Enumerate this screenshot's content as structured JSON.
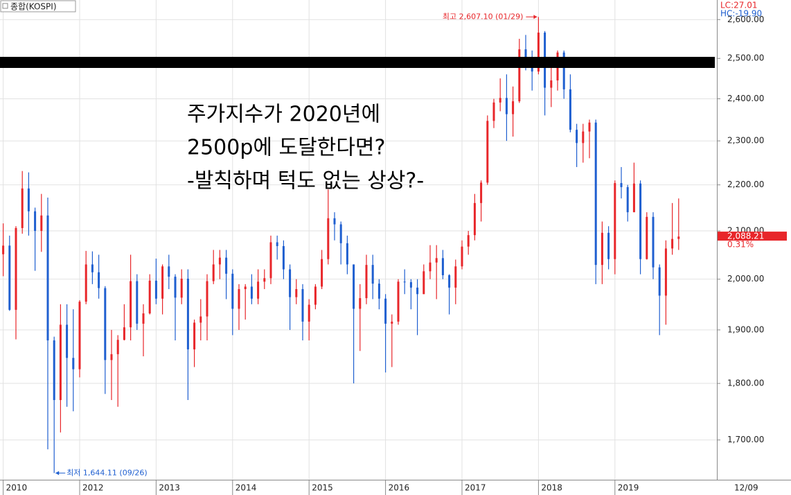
{
  "chart_data": {
    "type": "candlestick",
    "title": "종합(KOSPI)",
    "lc_label": "LC:27.01",
    "hc_label": "HC:-19.90",
    "overlay_text": [
      "주가지수가 2020년에",
      "2500p에 도달한다면?",
      "-발칙하며 턱도 없는 상상?-"
    ],
    "log_scale": true,
    "grid": true,
    "up_color": "#e8262a",
    "down_color": "#1f5fd0",
    "ylim": [
      1633,
      2652
    ],
    "yticks": [
      {
        "value": 1700,
        "label": "1,700.00"
      },
      {
        "value": 1800,
        "label": "1,800.00"
      },
      {
        "value": 1900,
        "label": "1,900.00"
      },
      {
        "value": 2000,
        "label": "2,000.00"
      },
      {
        "value": 2100,
        "label": "2,100.00"
      },
      {
        "value": 2200,
        "label": "2,200.00"
      },
      {
        "value": 2300,
        "label": "2,300.00"
      },
      {
        "value": 2400,
        "label": "2,400.00"
      },
      {
        "value": 2500,
        "label": "2,500.00"
      },
      {
        "value": 2600,
        "label": "2,600.00"
      }
    ],
    "xlim": [
      -0.5,
      112
    ],
    "xticks": [
      {
        "value": 0,
        "label": "2010"
      },
      {
        "value": 12,
        "label": "2012"
      },
      {
        "value": 24,
        "label": "2013"
      },
      {
        "value": 36,
        "label": "2014"
      },
      {
        "value": 48,
        "label": "2015"
      },
      {
        "value": 60,
        "label": "2016"
      },
      {
        "value": 72,
        "label": "2017"
      },
      {
        "value": 84,
        "label": "2018"
      },
      {
        "value": 96,
        "label": "2019"
      }
    ],
    "x_end_label": "12/09",
    "high_mark": {
      "index": 84,
      "value": 2607.1,
      "label": "최고 2,607.10 (01/29)"
    },
    "low_mark": {
      "index": 8,
      "value": 1644.11,
      "label": "최저 1,644.11 (09/26)"
    },
    "last_price": {
      "value": 2088.21,
      "label": "2,088.21"
    },
    "change_label": "0.31%",
    "candles": [
      [
        2051,
        2116,
        2006,
        2069
      ],
      [
        2069,
        2090,
        1937,
        1939
      ],
      [
        1939,
        2110,
        1882,
        2106
      ],
      [
        2106,
        2231,
        2094,
        2192
      ],
      [
        2192,
        2228,
        2090,
        2142
      ],
      [
        2142,
        2150,
        2017,
        2100
      ],
      [
        2100,
        2180,
        2056,
        2133
      ],
      [
        2133,
        2172,
        1684,
        1880
      ],
      [
        1880,
        1887,
        1644,
        1770
      ],
      [
        1770,
        1950,
        1713,
        1910
      ],
      [
        1910,
        1950,
        1758,
        1847
      ],
      [
        1847,
        1940,
        1750,
        1826
      ],
      [
        1826,
        1958,
        1811,
        1955
      ],
      [
        1955,
        2058,
        1950,
        2030
      ],
      [
        2030,
        2057,
        1990,
        2014
      ],
      [
        2014,
        2050,
        1961,
        1982
      ],
      [
        1982,
        1986,
        1781,
        1843
      ],
      [
        1843,
        1900,
        1770,
        1854
      ],
      [
        1854,
        1890,
        1758,
        1881
      ],
      [
        1881,
        1950,
        1880,
        1905
      ],
      [
        1905,
        2050,
        1880,
        1996
      ],
      [
        1996,
        2010,
        1900,
        1912
      ],
      [
        1912,
        1950,
        1850,
        1932
      ],
      [
        1932,
        2010,
        1930,
        1997
      ],
      [
        1997,
        2042,
        1950,
        1961
      ],
      [
        1961,
        2030,
        1930,
        2026
      ],
      [
        2026,
        2050,
        1980,
        2005
      ],
      [
        2005,
        2010,
        1880,
        1963
      ],
      [
        1963,
        2020,
        1950,
        2001
      ],
      [
        2001,
        2020,
        1770,
        1863
      ],
      [
        1863,
        1920,
        1830,
        1914
      ],
      [
        1914,
        1960,
        1880,
        1926
      ],
      [
        1926,
        2010,
        1880,
        1996
      ],
      [
        1996,
        2060,
        1990,
        2030
      ],
      [
        2030,
        2060,
        2000,
        2044
      ],
      [
        2044,
        2060,
        1960,
        2011
      ],
      [
        2011,
        2020,
        1890,
        1941
      ],
      [
        1941,
        1990,
        1900,
        1980
      ],
      [
        1980,
        1990,
        1920,
        1985
      ],
      [
        1985,
        2010,
        1950,
        1961
      ],
      [
        1961,
        2020,
        1950,
        1995
      ],
      [
        1995,
        2020,
        1980,
        2002
      ],
      [
        2002,
        2090,
        1990,
        2076
      ],
      [
        2076,
        2090,
        2040,
        2068
      ],
      [
        2068,
        2080,
        2000,
        2020
      ],
      [
        2020,
        2030,
        1900,
        1964
      ],
      [
        1964,
        2000,
        1950,
        1980
      ],
      [
        1980,
        1990,
        1880,
        1916
      ],
      [
        1916,
        1960,
        1880,
        1949
      ],
      [
        1949,
        1990,
        1940,
        1985
      ],
      [
        1985,
        2060,
        1980,
        2041
      ],
      [
        2041,
        2190,
        2030,
        2127
      ],
      [
        2127,
        2140,
        2080,
        2114
      ],
      [
        2114,
        2120,
        2030,
        2074
      ],
      [
        2074,
        2090,
        2010,
        2030
      ],
      [
        2030,
        2030,
        1800,
        1941
      ],
      [
        1941,
        1990,
        1860,
        1962
      ],
      [
        1962,
        2050,
        1950,
        2029
      ],
      [
        2029,
        2050,
        1960,
        1991
      ],
      [
        1991,
        2000,
        1940,
        1961
      ],
      [
        1961,
        1970,
        1820,
        1912
      ],
      [
        1912,
        1930,
        1830,
        1916
      ],
      [
        1916,
        2000,
        1910,
        1995
      ],
      [
        1995,
        2020,
        1970,
        1994
      ],
      [
        1994,
        2000,
        1940,
        1983
      ],
      [
        1983,
        2000,
        1890,
        1970
      ],
      [
        1970,
        2030,
        1970,
        2016
      ],
      [
        2016,
        2070,
        2000,
        2034
      ],
      [
        2034,
        2070,
        1960,
        2043
      ],
      [
        2043,
        2060,
        2000,
        2008
      ],
      [
        2008,
        2010,
        1930,
        1983
      ],
      [
        1983,
        2040,
        1950,
        2026
      ],
      [
        2026,
        2080,
        2020,
        2067
      ],
      [
        2067,
        2100,
        2050,
        2091
      ],
      [
        2091,
        2180,
        2080,
        2160
      ],
      [
        2160,
        2210,
        2120,
        2205
      ],
      [
        2205,
        2360,
        2200,
        2347
      ],
      [
        2347,
        2400,
        2330,
        2391
      ],
      [
        2391,
        2450,
        2370,
        2402
      ],
      [
        2402,
        2460,
        2300,
        2363
      ],
      [
        2363,
        2430,
        2310,
        2394
      ],
      [
        2394,
        2550,
        2390,
        2523
      ],
      [
        2523,
        2560,
        2470,
        2476
      ],
      [
        2476,
        2520,
        2420,
        2467
      ],
      [
        2467,
        2607,
        2460,
        2566
      ],
      [
        2566,
        2570,
        2360,
        2427
      ],
      [
        2427,
        2480,
        2380,
        2445
      ],
      [
        2445,
        2520,
        2420,
        2515
      ],
      [
        2515,
        2520,
        2400,
        2423
      ],
      [
        2423,
        2460,
        2320,
        2326
      ],
      [
        2326,
        2340,
        2240,
        2295
      ],
      [
        2295,
        2340,
        2250,
        2322
      ],
      [
        2322,
        2350,
        2260,
        2343
      ],
      [
        2343,
        2350,
        1990,
        2029
      ],
      [
        2029,
        2120,
        1990,
        2096
      ],
      [
        2096,
        2110,
        2020,
        2041
      ],
      [
        2041,
        2210,
        2010,
        2204
      ],
      [
        2204,
        2240,
        2170,
        2195
      ],
      [
        2195,
        2200,
        2120,
        2140
      ],
      [
        2140,
        2250,
        2140,
        2203
      ],
      [
        2203,
        2210,
        2010,
        2041
      ],
      [
        2041,
        2140,
        2040,
        2130
      ],
      [
        2130,
        2140,
        2000,
        2024
      ],
      [
        2024,
        2030,
        1890,
        1967
      ],
      [
        1967,
        2080,
        1910,
        2063
      ],
      [
        2063,
        2160,
        2050,
        2083
      ],
      [
        2083,
        2170,
        2060,
        2088
      ]
    ]
  }
}
